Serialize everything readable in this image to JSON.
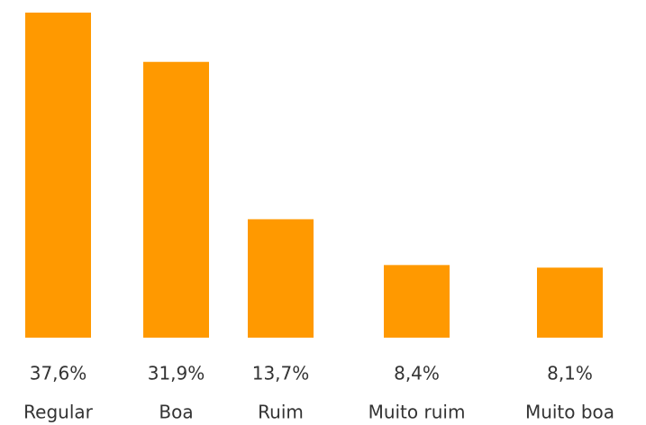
{
  "chart_data": {
    "type": "bar",
    "categories": [
      "Regular",
      "Boa",
      "Ruim",
      "Muito ruim",
      "Muito boa"
    ],
    "values": [
      37.6,
      31.9,
      13.7,
      8.4,
      8.1
    ],
    "value_labels": [
      "37,6%",
      "31,9%",
      "13,7%",
      "8,4%",
      "8,1%"
    ],
    "color": "#ff9900"
  }
}
